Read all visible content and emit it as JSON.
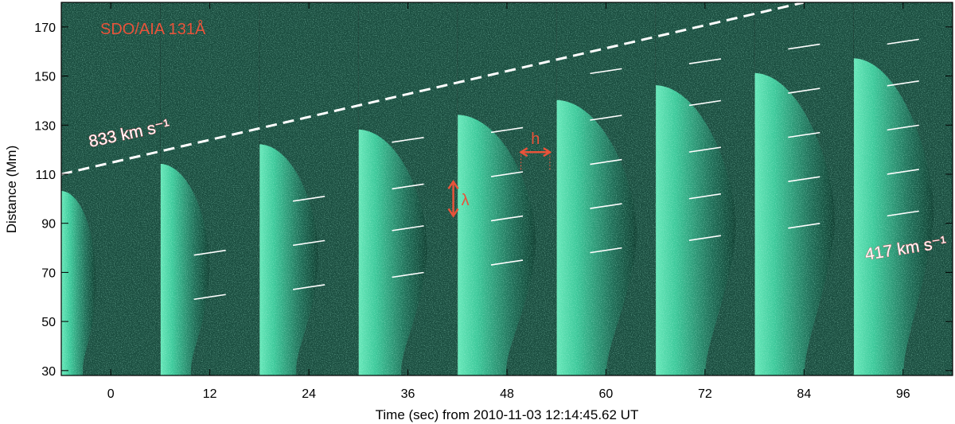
{
  "chart_data": {
    "type": "image-timeseries",
    "instrument_label": "SDO/AIA 131Å",
    "xlabel": "Time (sec) from 2010-11-03 12:14:45.62 UT",
    "ylabel": "Distance (Mm)",
    "ylim": [
      28,
      180
    ],
    "xlim": [
      -6,
      102
    ],
    "x_ticks": [
      0,
      12,
      24,
      36,
      48,
      60,
      72,
      84,
      96
    ],
    "y_ticks": [
      30,
      50,
      70,
      90,
      110,
      130,
      150,
      170
    ],
    "colors": {
      "accent": "#e8533a",
      "image_bright": "#6cf0c0",
      "image_dark": "#0f3d30"
    },
    "frames": [
      {
        "t": 0,
        "front_height": 100,
        "width": 8
      },
      {
        "t": 12,
        "front_height": 111,
        "width": 14
      },
      {
        "t": 24,
        "front_height": 119,
        "width": 18
      },
      {
        "t": 36,
        "front_height": 125,
        "width": 22
      },
      {
        "t": 48,
        "front_height": 131,
        "width": 26
      },
      {
        "t": 60,
        "front_height": 137,
        "width": 29
      },
      {
        "t": 72,
        "front_height": 143,
        "width": 31
      },
      {
        "t": 84,
        "front_height": 148,
        "width": 33
      },
      {
        "t": 96,
        "front_height": 154,
        "width": 35
      }
    ],
    "speed_lines": [
      {
        "label": "833 km s⁻¹",
        "from": [
          -6,
          110
        ],
        "to": [
          84,
          180
        ]
      }
    ],
    "speed_labels": [
      {
        "text": "833 km s⁻¹",
        "x": -2.5,
        "y": 121,
        "angle": -12
      },
      {
        "text": "417 km s⁻¹",
        "x": 91.5,
        "y": 75,
        "angle": -9
      }
    ],
    "wave_marks": [
      {
        "t": 12,
        "heights": [
          60,
          78
        ]
      },
      {
        "t": 24,
        "heights": [
          64,
          82,
          100
        ]
      },
      {
        "t": 36,
        "heights": [
          69,
          88,
          105,
          124
        ]
      },
      {
        "t": 48,
        "heights": [
          74,
          92,
          110,
          128
        ]
      },
      {
        "t": 60,
        "heights": [
          79,
          97,
          115,
          133,
          152
        ]
      },
      {
        "t": 72,
        "heights": [
          84,
          101,
          120,
          139,
          156
        ]
      },
      {
        "t": 84,
        "heights": [
          89,
          108,
          126,
          144,
          162
        ]
      },
      {
        "t": 96,
        "heights": [
          94,
          111,
          129,
          147,
          164
        ]
      }
    ],
    "lambda_annotation": {
      "label": "λ",
      "x": 41.5,
      "y_range": [
        93,
        107
      ]
    },
    "h_annotation": {
      "label": "h",
      "y": 119,
      "x_range": [
        49.7,
        53.2
      ]
    }
  }
}
